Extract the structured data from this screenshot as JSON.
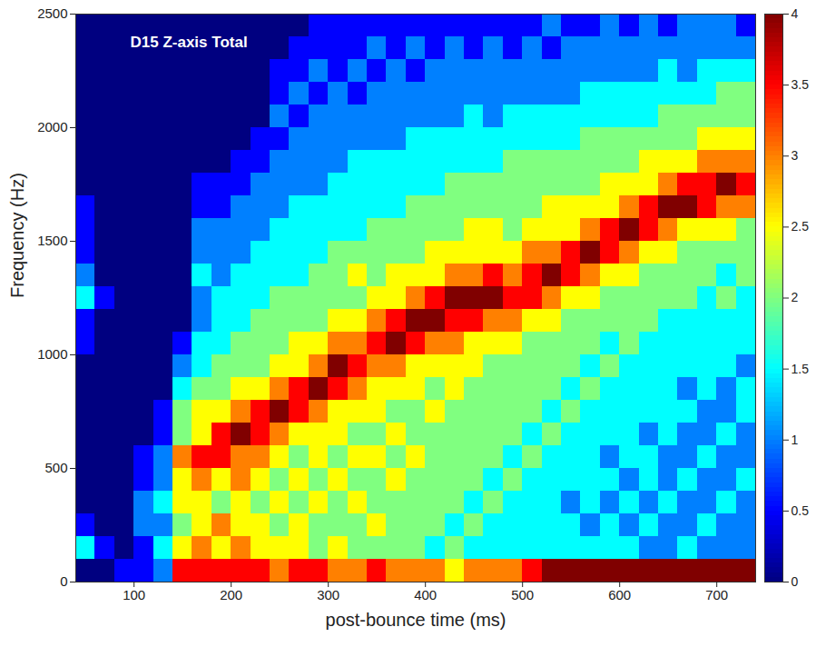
{
  "chart_data": {
    "type": "heatmap",
    "title": "D15 Z-axis Total",
    "x_label": "post-bounce time (ms)",
    "y_label": "Frequency (Hz)",
    "x_bins": [
      40,
      60,
      80,
      100,
      120,
      140,
      160,
      180,
      200,
      220,
      240,
      260,
      280,
      300,
      320,
      340,
      360,
      380,
      400,
      420,
      440,
      460,
      480,
      500,
      520,
      540,
      560,
      580,
      600,
      620,
      640,
      660,
      680,
      700,
      720,
      740
    ],
    "y_bins": [
      0,
      100,
      200,
      300,
      400,
      500,
      600,
      700,
      800,
      900,
      1000,
      1100,
      1200,
      1300,
      1400,
      1500,
      1600,
      1700,
      1800,
      1900,
      2000,
      2100,
      2200,
      2300,
      2400,
      2500
    ],
    "values": [
      [
        0,
        1.5,
        0.5,
        0,
        0,
        0,
        0,
        0,
        0,
        0,
        0.5,
        0.5,
        1.5,
        1,
        0.5,
        0.5,
        0.5,
        0,
        0,
        0,
        0,
        0,
        0,
        0,
        0
      ],
      [
        0,
        0.5,
        0,
        0,
        0,
        0,
        0,
        0,
        0,
        0,
        0,
        0,
        0.5,
        0,
        0,
        0,
        0,
        0,
        0,
        0,
        0,
        0,
        0,
        0,
        0
      ],
      [
        0.5,
        0,
        0,
        0,
        0,
        0,
        0,
        0,
        0,
        0,
        0,
        0,
        0,
        0,
        0,
        0,
        0,
        0,
        0,
        0,
        0,
        0,
        0,
        0,
        0
      ],
      [
        0.5,
        0.5,
        1,
        1,
        0.5,
        0.5,
        0,
        0,
        0,
        0,
        0,
        0,
        0,
        0,
        0,
        0,
        0,
        0,
        0,
        0,
        0,
        0,
        0,
        0,
        0
      ],
      [
        1,
        1.5,
        1,
        1.5,
        1,
        1,
        0.5,
        0.5,
        0,
        0,
        0,
        0,
        0,
        0,
        0,
        0,
        0,
        0,
        0,
        0,
        0,
        0,
        0,
        0,
        0
      ],
      [
        3.5,
        2.5,
        2,
        2.5,
        2.5,
        3,
        2,
        2,
        1.5,
        1,
        0.5,
        0,
        0,
        0,
        0,
        0,
        0,
        0,
        0,
        0,
        0,
        0,
        0,
        0,
        0
      ],
      [
        3.5,
        3,
        2.5,
        2.5,
        3,
        3.5,
        2.5,
        2.5,
        2,
        1.5,
        1.5,
        1,
        1,
        1.5,
        1,
        1,
        0.5,
        0.5,
        0,
        0,
        0,
        0,
        0,
        0,
        0
      ],
      [
        3.5,
        2.5,
        3,
        2,
        2.5,
        3.5,
        3.5,
        2.5,
        2,
        2,
        1.5,
        1.5,
        1.5,
        1,
        1,
        1,
        0.5,
        0.5,
        0,
        0,
        0,
        0,
        0,
        0,
        0
      ],
      [
        3.5,
        3,
        2.5,
        2.5,
        3,
        3,
        4,
        3,
        2.5,
        2,
        2,
        1.5,
        1.5,
        1.5,
        1,
        1,
        1,
        0.5,
        0.5,
        0,
        0,
        0,
        0,
        0,
        0
      ],
      [
        3.5,
        2.5,
        2.5,
        2,
        2.5,
        3,
        3.5,
        3.5,
        2.5,
        2,
        2,
        2,
        1.5,
        1.5,
        1.5,
        1,
        1,
        1,
        0.5,
        0.5,
        0,
        0,
        0,
        0,
        0
      ],
      [
        3,
        2.5,
        2,
        2.5,
        2,
        2.5,
        3,
        4,
        3,
        2.5,
        2,
        2,
        2,
        1.5,
        1.5,
        1.5,
        1,
        1,
        1,
        0.5,
        1,
        0.5,
        0.5,
        0,
        0
      ],
      [
        3.5,
        2.5,
        2.5,
        2,
        2.5,
        2,
        2.5,
        3.5,
        3.5,
        2.5,
        2.5,
        2,
        2,
        1.5,
        1.5,
        1.5,
        1.5,
        1,
        1,
        1,
        0.5,
        1,
        0.5,
        0.5,
        0
      ],
      [
        3.5,
        2,
        2,
        2.5,
        2,
        2.5,
        2.5,
        3,
        4,
        3,
        2.5,
        2,
        2,
        2,
        1.5,
        1.5,
        1.5,
        1,
        1,
        1,
        1,
        0.5,
        1,
        0.5,
        0.5
      ],
      [
        3,
        2.5,
        2,
        2,
        2.5,
        2,
        2.5,
        2.5,
        3.5,
        4,
        3,
        2.5,
        2,
        2,
        2,
        1.5,
        1.5,
        1.5,
        1,
        1,
        1,
        1,
        0.5,
        0.5,
        0.5
      ],
      [
        3,
        2,
        2,
        2.5,
        2,
        2.5,
        2,
        2.5,
        3,
        3.5,
        3,
        2.5,
        2,
        2.5,
        2,
        1.5,
        1.5,
        1.5,
        1.5,
        1,
        1,
        0.5,
        1,
        0.5,
        0.5
      ],
      [
        3.5,
        2,
        2.5,
        2,
        2,
        2.5,
        2,
        2.5,
        2.5,
        3,
        3.5,
        3,
        2.5,
        2,
        2,
        2,
        1.5,
        1.5,
        1.5,
        1,
        1,
        1,
        0.5,
        1,
        0.5
      ],
      [
        3,
        2,
        2,
        2,
        2.5,
        2,
        2.5,
        2,
        2.5,
        3,
        4,
        3.5,
        2.5,
        2.5,
        2,
        2,
        1.5,
        1.5,
        1.5,
        1,
        1,
        1,
        1,
        0.5,
        0.5
      ],
      [
        3,
        2,
        2,
        2,
        2,
        2.5,
        2,
        2,
        2.5,
        2.5,
        3.5,
        4,
        3,
        2.5,
        2,
        2,
        2,
        1.5,
        1.5,
        1.5,
        1,
        1,
        0.5,
        1,
        0.5
      ],
      [
        3,
        1.5,
        2,
        2,
        2,
        2,
        2,
        2.5,
        2,
        2.5,
        3,
        4,
        3.5,
        2.5,
        2.5,
        2,
        2,
        1.5,
        1.5,
        1.5,
        1,
        1,
        1,
        0.5,
        0.5
      ],
      [
        2.5,
        2,
        1.5,
        2,
        2,
        2,
        2,
        2,
        2.5,
        2.5,
        3,
        3.5,
        4,
        3,
        2.5,
        2,
        2,
        2,
        1.5,
        1.5,
        1,
        1,
        1,
        1,
        0.5
      ],
      [
        3,
        1.5,
        2,
        1.5,
        2,
        2,
        2,
        2,
        2,
        2.5,
        2.5,
        3.5,
        4,
        3,
        2.5,
        2.5,
        2,
        2,
        1.5,
        1.5,
        1.5,
        1,
        1,
        0.5,
        0.5
      ],
      [
        3,
        1.5,
        1.5,
        2,
        1.5,
        2,
        2,
        2,
        2,
        2,
        2.5,
        3,
        4,
        3.5,
        2.5,
        2.5,
        2,
        2,
        1.5,
        1.5,
        1,
        1,
        1,
        1,
        0.5
      ],
      [
        3,
        1.5,
        1.5,
        1.5,
        2,
        1.5,
        2,
        2,
        2,
        2,
        2.5,
        3,
        3.5,
        3,
        2.5,
        2,
        2,
        2,
        2,
        1.5,
        1.5,
        1,
        1,
        0.5,
        0.5
      ],
      [
        3.5,
        1.5,
        1.5,
        1.5,
        1.5,
        2,
        1.5,
        2,
        2,
        2,
        2,
        2.5,
        3.5,
        3.5,
        3,
        2.5,
        2,
        2,
        2,
        1.5,
        1.5,
        1,
        1,
        1,
        0.5
      ],
      [
        4,
        1.5,
        1.5,
        1.5,
        1.5,
        1.5,
        2,
        1.5,
        2,
        2,
        2,
        2.5,
        3,
        4,
        3,
        2.5,
        2.5,
        2,
        2,
        1.5,
        1.5,
        1,
        1,
        0.5,
        1
      ],
      [
        4,
        1.5,
        1.5,
        1,
        1.5,
        1.5,
        1.5,
        2,
        1.5,
        2,
        2,
        2,
        2.5,
        3.5,
        3.5,
        2.5,
        2.5,
        2,
        2,
        1.5,
        1.5,
        1,
        1,
        1,
        0.5
      ],
      [
        4,
        1.5,
        1,
        1.5,
        1.5,
        1.5,
        1.5,
        1.5,
        2,
        1.5,
        2,
        2,
        2.5,
        3,
        4,
        3,
        2.5,
        2,
        2,
        2,
        1.5,
        1.5,
        1,
        1,
        0.5
      ],
      [
        4,
        1.5,
        1.5,
        1,
        1.5,
        1,
        1.5,
        1.5,
        1.5,
        2,
        1.5,
        2,
        2,
        2.5,
        3.5,
        3.5,
        2.5,
        2.5,
        2,
        2,
        1.5,
        1.5,
        1,
        1,
        1
      ],
      [
        4,
        1.5,
        1,
        1.5,
        1,
        1.5,
        1.5,
        1.5,
        1.5,
        1.5,
        2,
        2,
        2,
        2.5,
        3,
        4,
        3,
        2.5,
        2,
        2,
        1.5,
        1.5,
        1,
        1,
        0.5
      ],
      [
        4,
        1,
        1.5,
        1,
        1.5,
        1.5,
        1,
        1.5,
        1.5,
        1.5,
        1.5,
        2,
        2,
        2,
        2.5,
        3.5,
        3.5,
        2.5,
        2.5,
        2,
        1.5,
        1.5,
        1,
        1,
        1
      ],
      [
        4,
        1,
        1,
        1.5,
        1,
        1,
        1.5,
        1.5,
        1.5,
        1.5,
        1.5,
        1.5,
        2,
        2,
        2.5,
        3,
        4,
        3,
        2.5,
        2,
        2,
        1.5,
        1.5,
        1,
        0.5
      ],
      [
        4,
        1.5,
        1,
        1,
        1.5,
        1,
        1,
        1.5,
        1,
        1.5,
        1.5,
        1.5,
        2,
        2,
        2,
        2.5,
        4,
        3.5,
        2.5,
        2,
        2,
        1.5,
        1,
        1,
        1
      ],
      [
        4,
        1,
        1.5,
        1,
        1,
        1.5,
        1,
        1,
        1.5,
        1.5,
        1.5,
        1.5,
        1.5,
        2,
        2,
        2.5,
        3.5,
        3.5,
        3,
        2.5,
        2,
        1.5,
        1.5,
        1,
        1
      ],
      [
        4,
        1,
        1,
        1.5,
        1,
        1,
        1.5,
        1,
        1,
        1.5,
        1.5,
        1.5,
        2,
        1.5,
        2,
        2.5,
        3,
        4,
        3,
        2.5,
        2,
        2,
        1.5,
        1,
        1
      ],
      [
        4,
        1,
        1,
        1,
        1.5,
        1,
        1,
        1.5,
        1.5,
        1,
        1.5,
        1.5,
        1.5,
        2,
        2,
        2,
        3,
        3.5,
        3,
        2.5,
        2,
        2,
        1.5,
        1,
        0.5
      ]
    ],
    "xlim": [
      40,
      740
    ],
    "ylim": [
      0,
      2500
    ],
    "xticks": [
      100,
      200,
      300,
      400,
      500,
      600,
      700
    ],
    "yticks": [
      0,
      500,
      1000,
      1500,
      2000,
      2500
    ],
    "colorbar_range": [
      0,
      4
    ],
    "colorbar_ticks": [
      0,
      0.5,
      1,
      1.5,
      2,
      2.5,
      3,
      3.5,
      4
    ],
    "grid": false
  }
}
